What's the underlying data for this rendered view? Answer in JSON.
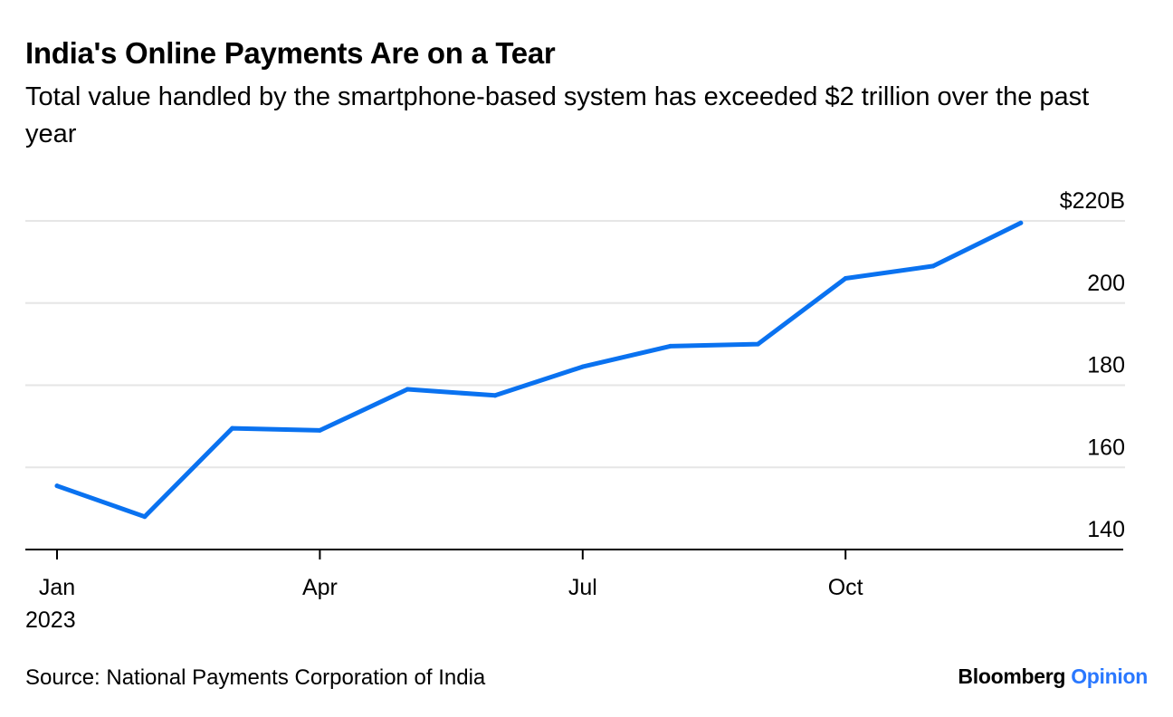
{
  "title": "India's Online Payments Are on a Tear",
  "subtitle": "Total value handled by the smartphone-based system has exceeded $2 trillion over the past year",
  "source": "Source: National Payments Corporation of India",
  "brand": {
    "name": "Bloomberg",
    "suffix": "Opinion"
  },
  "colors": {
    "line": "#0a72f0",
    "grid": "#e6e6e6",
    "axis": "#000000",
    "accent": "#2a78ff"
  },
  "chart_data": {
    "type": "line",
    "title": "India's Online Payments Are on a Tear",
    "ylabel": "",
    "xlabel": "",
    "ylim": [
      140,
      220
    ],
    "y_ticks": [
      {
        "value": 220,
        "label": "$220B"
      },
      {
        "value": 200,
        "label": "200"
      },
      {
        "value": 180,
        "label": "180"
      },
      {
        "value": 160,
        "label": "160"
      },
      {
        "value": 140,
        "label": "140"
      }
    ],
    "x_ticks": [
      {
        "month_index": 0,
        "label": "Jan",
        "sublabel": "2023"
      },
      {
        "month_index": 3,
        "label": "Apr",
        "sublabel": ""
      },
      {
        "month_index": 6,
        "label": "Jul",
        "sublabel": ""
      },
      {
        "month_index": 9,
        "label": "Oct",
        "sublabel": ""
      }
    ],
    "series": [
      {
        "name": "Total value",
        "x": [
          "Jan 2023",
          "Feb 2023",
          "Mar 2023",
          "Apr 2023",
          "May 2023",
          "Jun 2023",
          "Jul 2023",
          "Aug 2023",
          "Sep 2023",
          "Oct 2023",
          "Nov 2023",
          "Dec 2023"
        ],
        "values": [
          155.5,
          148,
          169.5,
          169,
          179,
          177.5,
          184.5,
          189.5,
          190,
          206,
          209,
          219.5
        ]
      }
    ],
    "grid": true
  }
}
